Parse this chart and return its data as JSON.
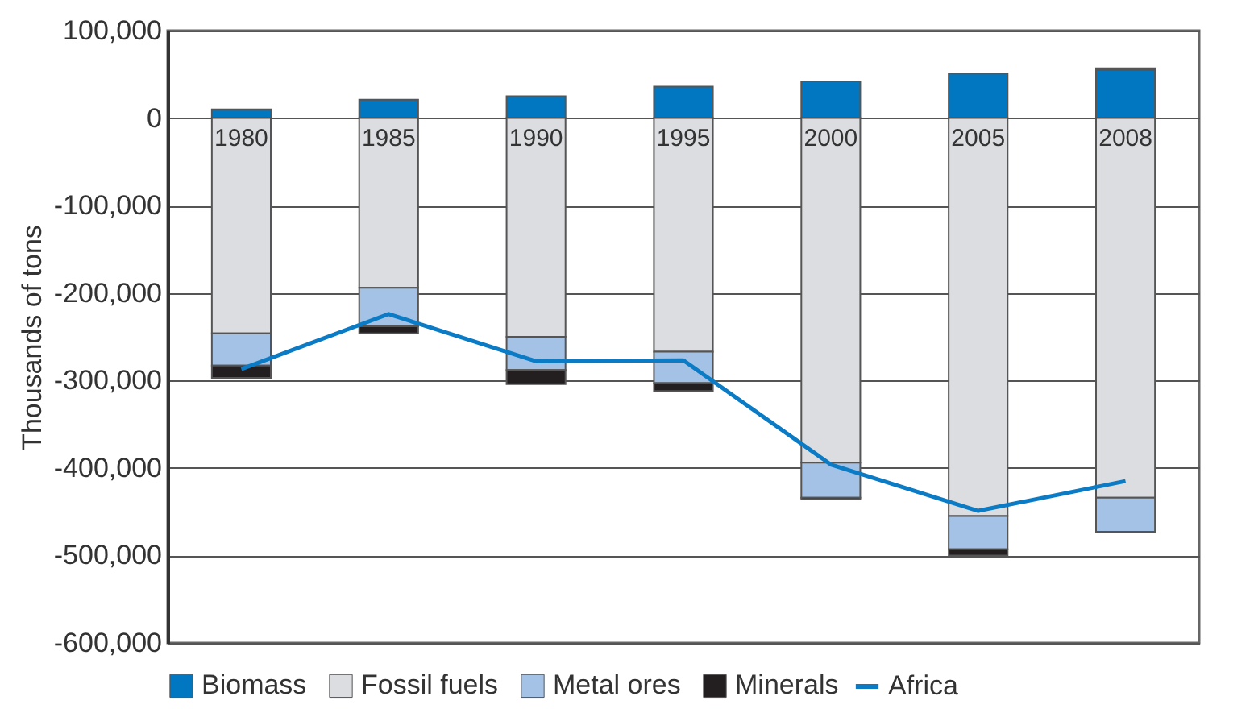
{
  "chart_data": {
    "type": "bar",
    "stacked": true,
    "ylabel": "Thousands of tons",
    "categories": [
      "1980",
      "1985",
      "1990",
      "1995",
      "2000",
      "2005",
      "2008"
    ],
    "series": [
      {
        "name": "Biomass",
        "color": "#0077c0",
        "values": [
          10000,
          21000,
          25000,
          36000,
          42000,
          51000,
          55000
        ]
      },
      {
        "name": "Fossil fuels",
        "color": "#dcdde0",
        "values": [
          -246000,
          -194000,
          -250000,
          -267000,
          -394000,
          -455000,
          -434000
        ]
      },
      {
        "name": "Metal ores",
        "color": "#a3c2e6",
        "values": [
          -37000,
          -44000,
          -38000,
          -36000,
          -40000,
          -38000,
          -39000
        ]
      },
      {
        "name": "Minerals",
        "color": "#231f20",
        "values": [
          -14000,
          -8000,
          -16000,
          -9000,
          -2000,
          -7000,
          2000
        ]
      },
      {
        "name": "Africa",
        "type": "line",
        "color": "#0a7bc4",
        "values": [
          -287000,
          -224000,
          -278000,
          -277000,
          -396000,
          -449000,
          -415000
        ]
      }
    ],
    "ylim": [
      -600000,
      100000
    ],
    "yticks": [
      {
        "value": -600000,
        "label": "-600,000"
      },
      {
        "value": -500000,
        "label": "-500,000"
      },
      {
        "value": -400000,
        "label": "-400,000"
      },
      {
        "value": -300000,
        "label": "-300,000"
      },
      {
        "value": -200000,
        "label": "-200,000"
      },
      {
        "value": -100000,
        "label": "-100,000"
      },
      0,
      {
        "value": 100000,
        "label": "100,000"
      }
    ],
    "grid": "y",
    "legend": "bottom"
  }
}
